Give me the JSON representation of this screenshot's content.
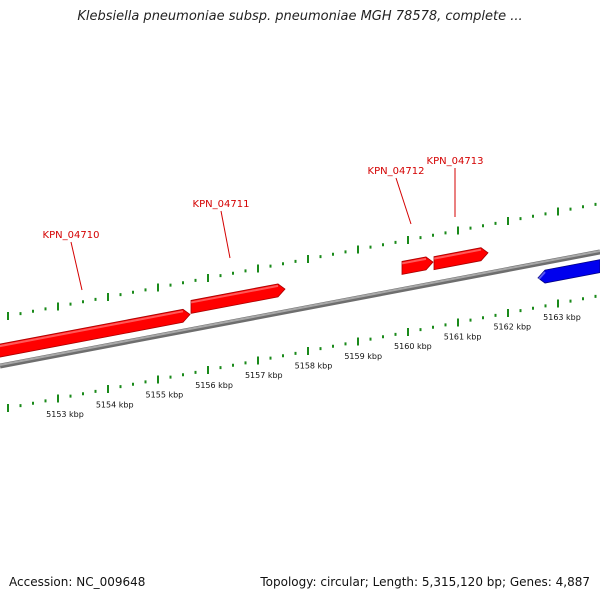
{
  "title": "Klebsiella pneumoniae subsp. pneumoniae MGH 78578, complete ...",
  "genes": [
    {
      "label": "KPN_04710",
      "strand": "forward",
      "color": "#ff0000"
    },
    {
      "label": "KPN_04711",
      "strand": "forward",
      "color": "#ff0000"
    },
    {
      "label": "KPN_04712",
      "strand": "forward",
      "color": "#ff0000"
    },
    {
      "label": "KPN_04713",
      "strand": "forward",
      "color": "#ff0000"
    },
    {
      "label": "",
      "strand": "reverse",
      "color": "#0000ee"
    }
  ],
  "scale_labels": [
    "5153 kbp",
    "5154 kbp",
    "5155 kbp",
    "5156 kbp",
    "5157 kbp",
    "5158 kbp",
    "5159 kbp",
    "5160 kbp",
    "5161 kbp",
    "5162 kbp",
    "5163 kbp"
  ],
  "colors": {
    "forward_gene": "#ff0000",
    "reverse_gene": "#0000ee",
    "backbone": "#808080",
    "ticks": "#1a8a1a",
    "label_line": "#d40000"
  },
  "footer": {
    "accession": "Accession: NC_009648",
    "summary": "Topology: circular; Length: 5,315,120 bp; Genes: 4,887"
  }
}
